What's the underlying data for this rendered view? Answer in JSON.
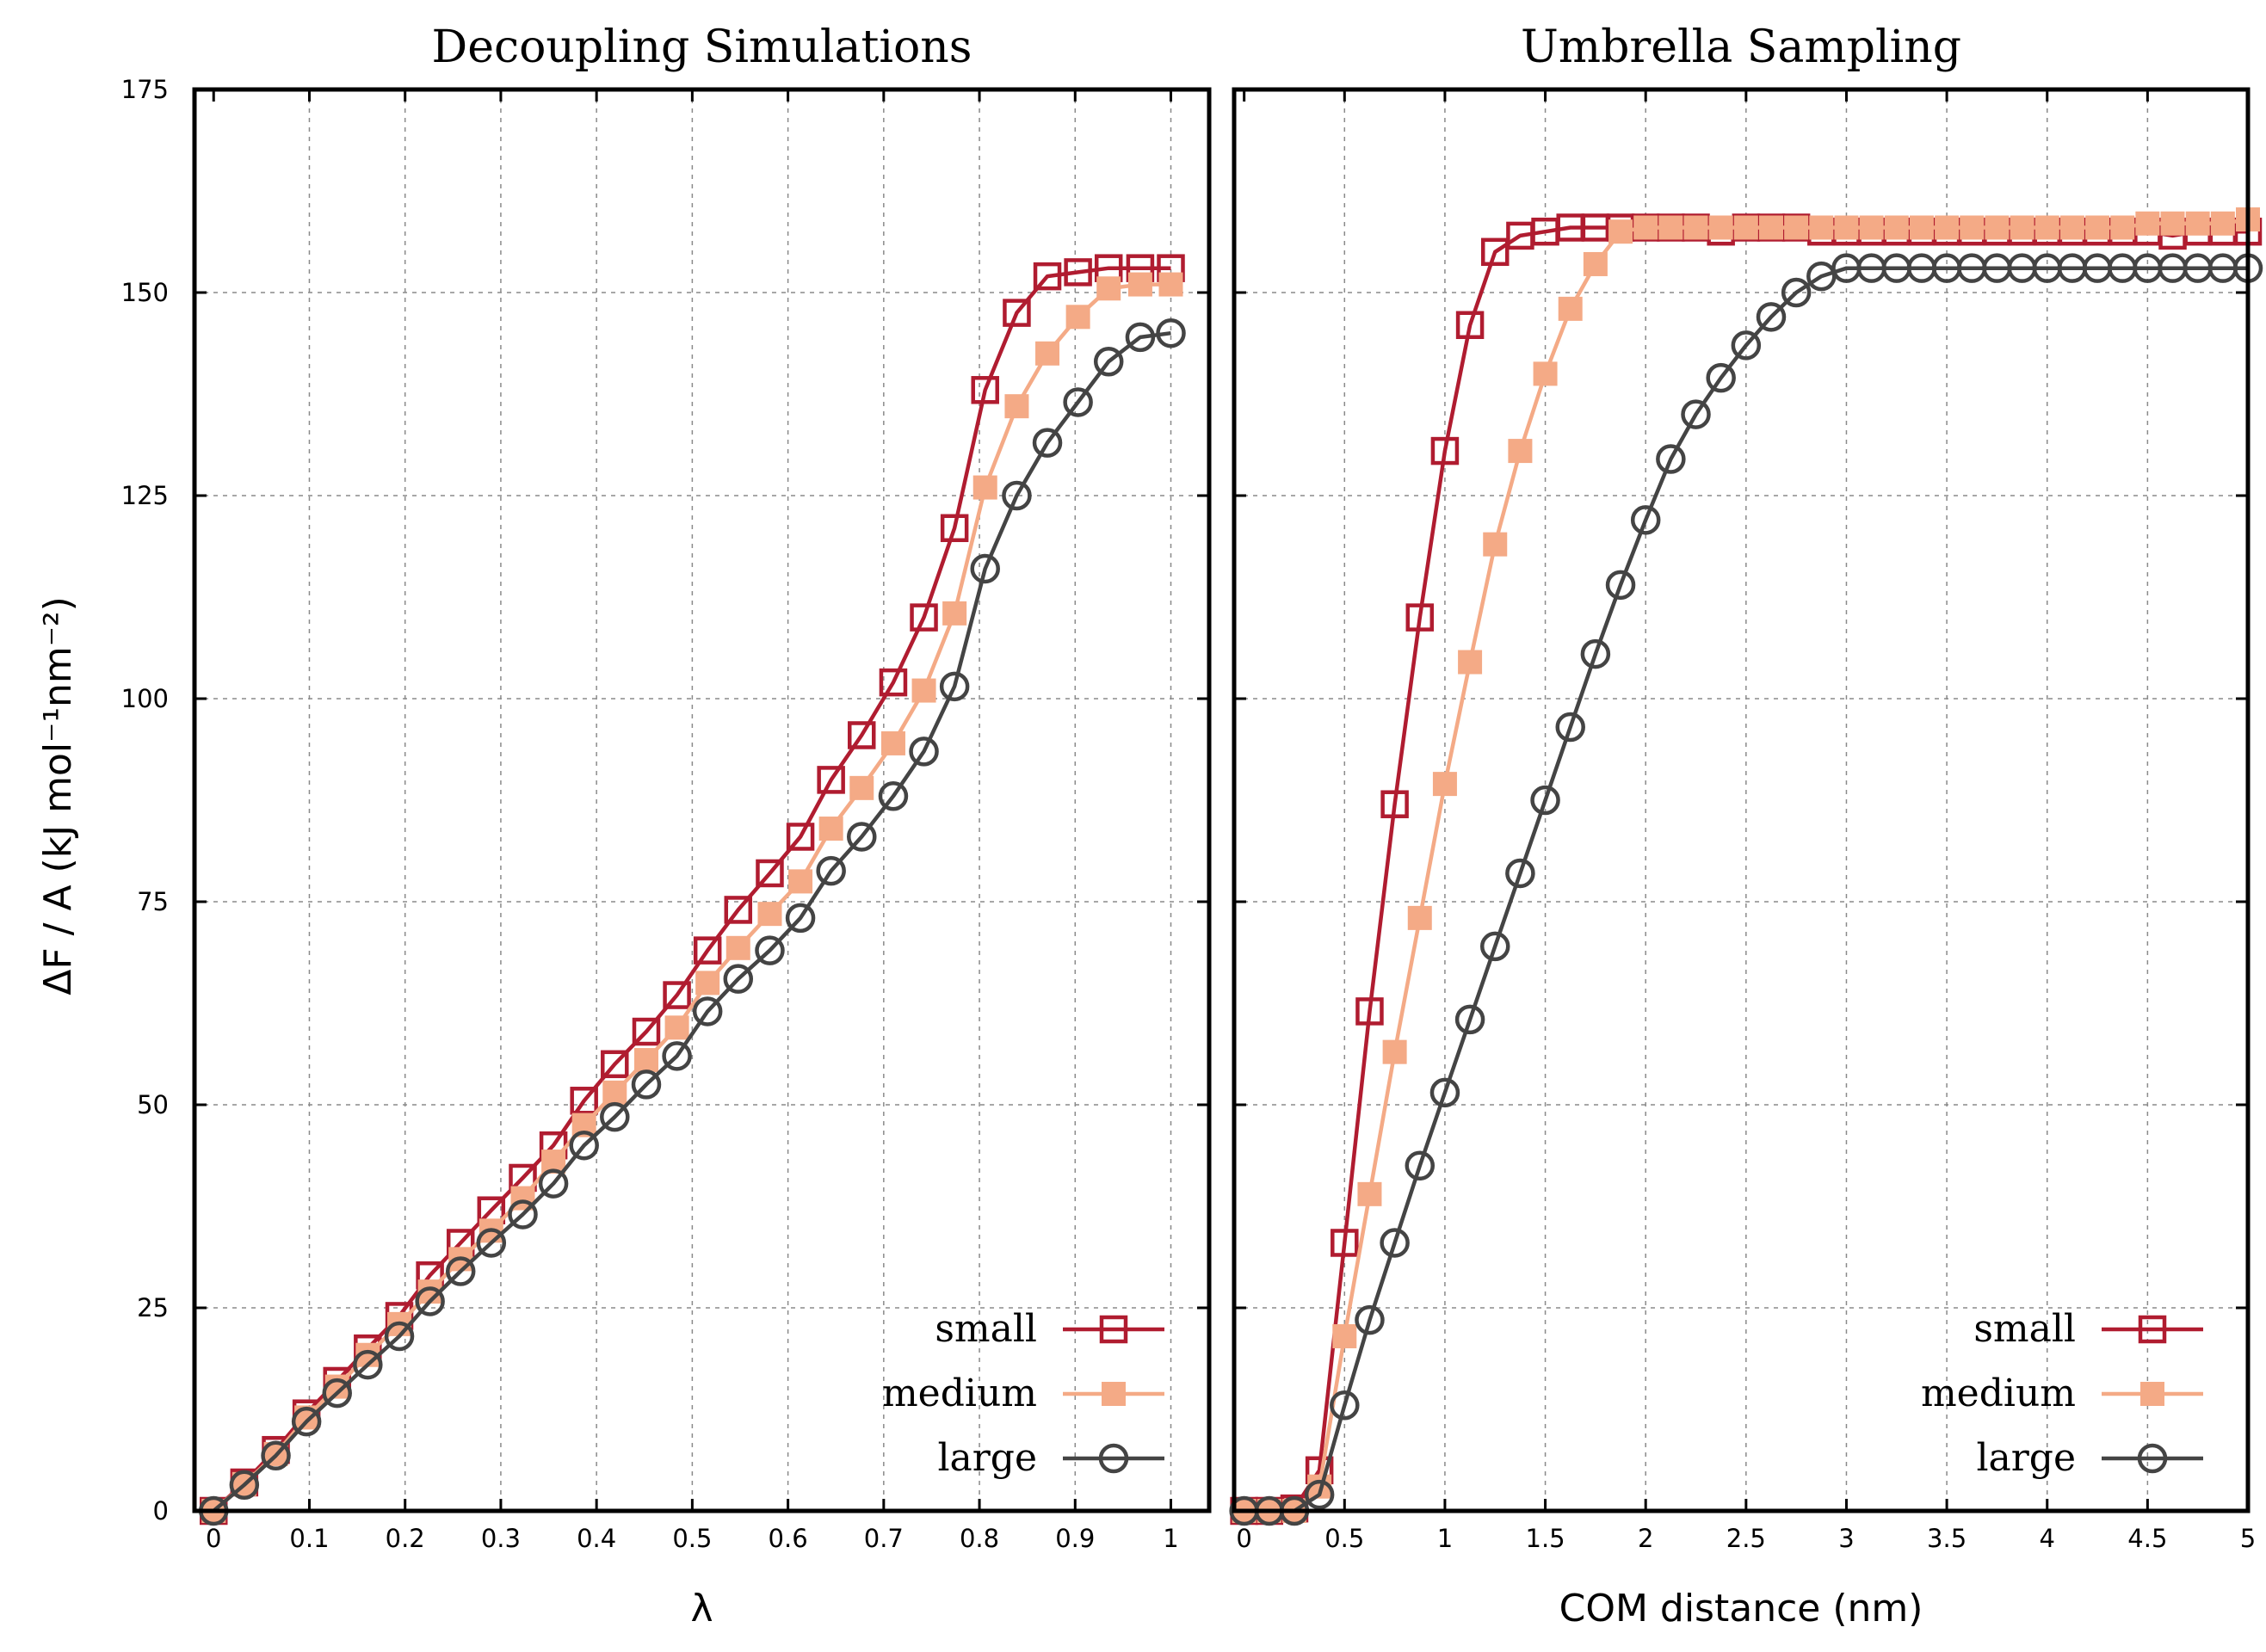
{
  "colors": {
    "small": "#b01c30",
    "medium": "#f4aa86",
    "large": "#444444"
  },
  "ylabel": "ΔF / A (kJ mol⁻¹nm⁻²)",
  "chart_data": [
    {
      "type": "line",
      "title": "Decoupling Simulations",
      "xlabel": "λ",
      "ylabel": "ΔF / A (kJ mol⁻¹nm⁻²)",
      "xlim": [
        -0.02,
        1.04
      ],
      "ylim": [
        0,
        175
      ],
      "xticks": [
        0,
        0.1,
        0.2,
        0.3,
        0.4,
        0.5,
        0.6,
        0.7,
        0.8,
        0.9,
        1
      ],
      "xtick_labels": [
        "0",
        "0.1",
        "0.2",
        "0.3",
        "0.4",
        "0.5",
        "0.6",
        "0.7",
        "0.8",
        "0.9",
        "1"
      ],
      "yticks": [
        0,
        25,
        50,
        75,
        100,
        125,
        150,
        175
      ],
      "ytick_labels": [
        "0",
        "25",
        "50",
        "75",
        "100",
        "125",
        "150",
        "175"
      ],
      "grid": true,
      "legend_position": "bottom-right",
      "x": [
        0,
        0.032,
        0.065,
        0.097,
        0.129,
        0.161,
        0.194,
        0.226,
        0.258,
        0.29,
        0.323,
        0.355,
        0.387,
        0.419,
        0.452,
        0.484,
        0.516,
        0.548,
        0.581,
        0.613,
        0.645,
        0.677,
        0.71,
        0.742,
        0.774,
        0.806,
        0.839,
        0.871,
        0.903,
        0.935,
        0.968,
        1.0
      ],
      "series": [
        {
          "name": "small",
          "marker": "open-square",
          "values": [
            0,
            3.5,
            7.5,
            12,
            16,
            20,
            24,
            29,
            33,
            37,
            41,
            45,
            50.5,
            55,
            59,
            63.5,
            69,
            74,
            78.5,
            83,
            90,
            95.5,
            102,
            110,
            121,
            138,
            147.5,
            152,
            152.5,
            153,
            153,
            153
          ]
        },
        {
          "name": "medium",
          "marker": "filled-square",
          "values": [
            0,
            3.3,
            7,
            11.5,
            15.3,
            19.2,
            23,
            27,
            31,
            34.5,
            38.5,
            43,
            47.5,
            51.5,
            55.5,
            59.5,
            65,
            69.3,
            73.5,
            77.5,
            84,
            89,
            94.5,
            101,
            110.5,
            126,
            136,
            142.5,
            147,
            150.5,
            151,
            151
          ]
        },
        {
          "name": "large",
          "marker": "open-circle",
          "values": [
            0,
            3.2,
            6.8,
            11,
            14.5,
            18,
            21.5,
            25.8,
            29.5,
            33,
            36.5,
            40.3,
            45,
            48.5,
            52.5,
            56,
            61.5,
            65.5,
            69,
            73,
            78.8,
            83,
            88,
            93.5,
            101.5,
            116,
            125,
            131.5,
            136.5,
            141.5,
            144.5,
            145
          ]
        }
      ]
    },
    {
      "type": "line",
      "title": "Umbrella Sampling",
      "xlabel": "COM distance (nm)",
      "xlim": [
        -0.05,
        5.0
      ],
      "ylim": [
        0,
        175
      ],
      "xticks": [
        0,
        0.5,
        1,
        1.5,
        2,
        2.5,
        3,
        3.5,
        4,
        4.5,
        5
      ],
      "xtick_labels": [
        "0",
        "0.5",
        "1",
        "1.5",
        "2",
        "2.5",
        "3",
        "3.5",
        "4",
        "4.5",
        "5"
      ],
      "grid": true,
      "legend_position": "bottom-right",
      "series": [
        {
          "name": "small",
          "marker": "open-square",
          "x": [
            0,
            0.125,
            0.25,
            0.375,
            0.5,
            0.625,
            0.75,
            0.875,
            1.0,
            1.125,
            1.25,
            1.375,
            1.5,
            1.625,
            1.75,
            1.875,
            2.0,
            2.125,
            2.25,
            2.375,
            2.5,
            2.625,
            2.75,
            2.875,
            3.0,
            3.125,
            3.25,
            3.375,
            3.5,
            3.625,
            3.75,
            3.875,
            4.0,
            4.125,
            4.25,
            4.375,
            4.5,
            4.625,
            4.75,
            4.875,
            5.0
          ],
          "values": [
            0,
            0,
            0.3,
            5,
            33,
            61.5,
            87,
            110,
            130.5,
            146,
            155,
            157,
            157.5,
            158,
            158,
            158,
            158,
            158,
            158,
            157.5,
            158,
            158,
            158,
            157.5,
            157.5,
            157.5,
            157.5,
            157.5,
            157.5,
            157.5,
            157.5,
            157.5,
            157.5,
            157.5,
            157.5,
            157.5,
            157.5,
            157,
            157.5,
            157.5,
            157.5
          ]
        },
        {
          "name": "medium",
          "marker": "filled-square",
          "x": [
            0,
            0.125,
            0.25,
            0.375,
            0.5,
            0.625,
            0.75,
            0.875,
            1.0,
            1.125,
            1.25,
            1.375,
            1.5,
            1.625,
            1.75,
            1.875,
            2.0,
            2.125,
            2.25,
            2.375,
            2.5,
            2.625,
            2.75,
            2.875,
            3.0,
            3.125,
            3.25,
            3.375,
            3.5,
            3.625,
            3.75,
            3.875,
            4.0,
            4.125,
            4.25,
            4.375,
            4.5,
            4.625,
            4.75,
            4.875,
            5.0
          ],
          "values": [
            0,
            0,
            0,
            3,
            21.5,
            39,
            56.5,
            73,
            89.5,
            104.5,
            119,
            130.5,
            140,
            148,
            153.5,
            157.5,
            158,
            158,
            158,
            158,
            158,
            158,
            158,
            158,
            158,
            158,
            158,
            158,
            158,
            158,
            158,
            158,
            158,
            158,
            158,
            158,
            158.5,
            158.5,
            158.5,
            158.5,
            159
          ]
        },
        {
          "name": "large",
          "marker": "open-circle",
          "x": [
            0,
            0.125,
            0.25,
            0.375,
            0.5,
            0.625,
            0.75,
            0.875,
            1.0,
            1.125,
            1.25,
            1.375,
            1.5,
            1.625,
            1.75,
            1.875,
            2.0,
            2.125,
            2.25,
            2.375,
            2.5,
            2.625,
            2.75,
            2.875,
            3.0,
            3.125,
            3.25,
            3.375,
            3.5,
            3.625,
            3.75,
            3.875,
            4.0,
            4.125,
            4.25,
            4.375,
            4.5,
            4.625,
            4.75,
            4.875,
            5.0
          ],
          "values": [
            0,
            0,
            0,
            2,
            13,
            23.5,
            33,
            42.5,
            51.5,
            60.5,
            69.5,
            78.5,
            87.5,
            96.5,
            105.5,
            114,
            122,
            129.5,
            135,
            139.5,
            143.5,
            147,
            150,
            152,
            153,
            153,
            153,
            153,
            153,
            153,
            153,
            153,
            153,
            153,
            153,
            153,
            153,
            153,
            153,
            153,
            153
          ]
        }
      ]
    }
  ]
}
